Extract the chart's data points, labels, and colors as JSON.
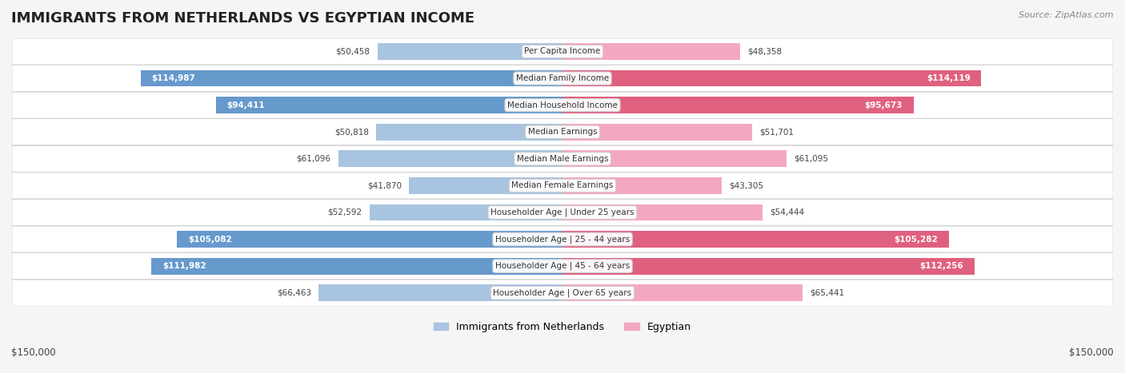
{
  "title": "IMMIGRANTS FROM NETHERLANDS VS EGYPTIAN INCOME",
  "source": "Source: ZipAtlas.com",
  "categories": [
    "Per Capita Income",
    "Median Family Income",
    "Median Household Income",
    "Median Earnings",
    "Median Male Earnings",
    "Median Female Earnings",
    "Householder Age | Under 25 years",
    "Householder Age | 25 - 44 years",
    "Householder Age | 45 - 64 years",
    "Householder Age | Over 65 years"
  ],
  "netherlands_values": [
    50458,
    114987,
    94411,
    50818,
    61096,
    41870,
    52592,
    105082,
    111982,
    66463
  ],
  "egyptian_values": [
    48358,
    114119,
    95673,
    51701,
    61095,
    43305,
    54444,
    105282,
    112256,
    65441
  ],
  "netherlands_labels": [
    "$50,458",
    "$114,987",
    "$94,411",
    "$50,818",
    "$61,096",
    "$41,870",
    "$52,592",
    "$105,082",
    "$111,982",
    "$66,463"
  ],
  "egyptian_labels": [
    "$48,358",
    "$114,119",
    "$95,673",
    "$51,701",
    "$61,095",
    "$43,305",
    "$54,444",
    "$105,282",
    "$112,256",
    "$65,441"
  ],
  "netherlands_color_fill": "#a8c4e0",
  "netherlands_color_solid": "#6699cc",
  "egyptian_color_fill": "#f4a8c0",
  "egyptian_color_solid": "#e06080",
  "max_value": 150000,
  "background_color": "#f5f5f5",
  "row_bg_color": "#ffffff",
  "row_alt_bg_color": "#f0f0f0",
  "label_bg_color": "#ffffff",
  "xlabel_left": "$150,000",
  "xlabel_right": "$150,000"
}
